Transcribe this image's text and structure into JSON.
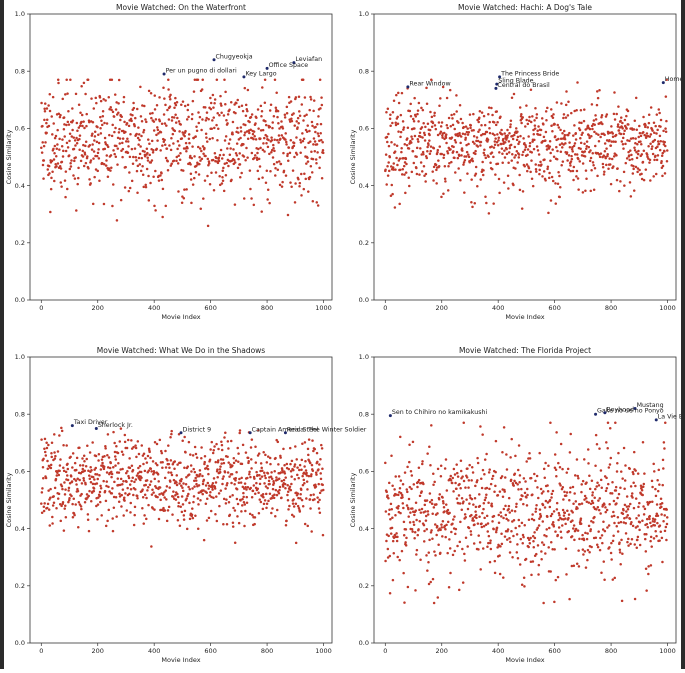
{
  "chart_data": [
    {
      "type": "scatter",
      "title": "Movie Watched: On the Waterfront",
      "xlabel": "Movie Index",
      "ylabel": "Cosine Similarity",
      "xlim": [
        -40,
        1030
      ],
      "ylim": [
        0.0,
        1.0
      ],
      "xticks": [
        "0",
        "200",
        "400",
        "600",
        "800",
        "1000"
      ],
      "yticks": [
        "0.0",
        "0.2",
        "0.4",
        "0.6",
        "0.8",
        "1.0"
      ],
      "point_color": "#c0392b",
      "highlight_color": "#1f2a6b",
      "point_count": 1000,
      "seed": 11,
      "mean": 0.56,
      "sd": 0.1,
      "annotations": [
        {
          "label": "Chugyeokja",
          "x": 612,
          "y": 0.84
        },
        {
          "label": "Leviafan",
          "x": 895,
          "y": 0.83
        },
        {
          "label": "Office Space",
          "x": 800,
          "y": 0.81
        },
        {
          "label": "Per un pugno di dollari",
          "x": 435,
          "y": 0.79
        },
        {
          "label": "Key Largo",
          "x": 718,
          "y": 0.78
        }
      ]
    },
    {
      "type": "scatter",
      "title": "Movie Watched: Hachi: A Dog's Tale",
      "xlabel": "Movie Index",
      "ylabel": "Cosine Similarity",
      "xlim": [
        -40,
        1030
      ],
      "ylim": [
        0.0,
        1.0
      ],
      "xticks": [
        "0",
        "200",
        "400",
        "600",
        "800",
        "1000"
      ],
      "yticks": [
        "0.0",
        "0.2",
        "0.4",
        "0.6",
        "0.8",
        "1.0"
      ],
      "point_color": "#c0392b",
      "highlight_color": "#1f2a6b",
      "point_count": 1000,
      "seed": 23,
      "mean": 0.54,
      "sd": 0.08,
      "annotations": [
        {
          "label": "The Princess Bride",
          "x": 405,
          "y": 0.78
        },
        {
          "label": "Home Alone",
          "x": 985,
          "y": 0.76
        },
        {
          "label": "Sling Blade",
          "x": 395,
          "y": 0.755
        },
        {
          "label": "Rear Window",
          "x": 80,
          "y": 0.745
        },
        {
          "label": "Central do Brasil",
          "x": 392,
          "y": 0.74
        }
      ]
    },
    {
      "type": "scatter",
      "title": "Movie Watched: What We Do in the Shadows",
      "xlabel": "Movie Index",
      "ylabel": "Cosine Similarity",
      "xlim": [
        -40,
        1030
      ],
      "ylim": [
        0.0,
        1.0
      ],
      "xticks": [
        "0",
        "200",
        "400",
        "600",
        "800",
        "1000"
      ],
      "yticks": [
        "0.0",
        "0.2",
        "0.4",
        "0.6",
        "0.8",
        "1.0"
      ],
      "point_color": "#c0392b",
      "highlight_color": "#1f2a6b",
      "point_count": 1000,
      "seed": 37,
      "mean": 0.57,
      "sd": 0.075,
      "annotations": [
        {
          "label": "Taxi Driver",
          "x": 110,
          "y": 0.76
        },
        {
          "label": "Sherlock Jr.",
          "x": 195,
          "y": 0.75
        },
        {
          "label": "District 9",
          "x": 495,
          "y": 0.735
        },
        {
          "label": "Captain America: The Winter Soldier",
          "x": 740,
          "y": 0.735
        },
        {
          "label": "Real Steel",
          "x": 865,
          "y": 0.735
        }
      ]
    },
    {
      "type": "scatter",
      "title": "Movie Watched: The Florida Project",
      "xlabel": "Movie Index",
      "ylabel": "Cosine Similarity",
      "xlim": [
        -40,
        1030
      ],
      "ylim": [
        0.0,
        1.0
      ],
      "xticks": [
        "0",
        "200",
        "400",
        "600",
        "800",
        "1000"
      ],
      "yticks": [
        "0.0",
        "0.2",
        "0.4",
        "0.6",
        "0.8",
        "1.0"
      ],
      "point_color": "#c0392b",
      "highlight_color": "#1f2a6b",
      "point_count": 1000,
      "seed": 53,
      "mean": 0.46,
      "sd": 0.12,
      "annotations": [
        {
          "label": "Sen to Chihiro no kamikakushi",
          "x": 18,
          "y": 0.795
        },
        {
          "label": "Mustang",
          "x": 885,
          "y": 0.82
        },
        {
          "label": "Gake no ue no Ponyo",
          "x": 745,
          "y": 0.8
        },
        {
          "label": "Boyhood",
          "x": 778,
          "y": 0.805
        },
        {
          "label": "La Vie En Rose",
          "x": 960,
          "y": 0.78
        }
      ]
    }
  ]
}
